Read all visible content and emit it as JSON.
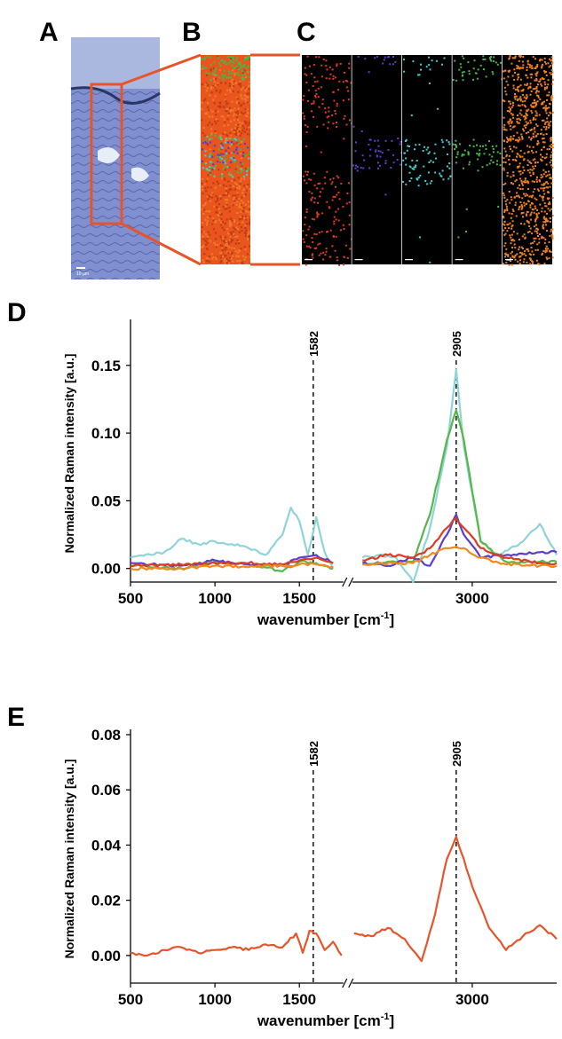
{
  "panels": {
    "A": "A",
    "B": "B",
    "C": "C",
    "D": "D",
    "E": "E"
  },
  "microscope": {
    "scale_bar_label": "10 µm",
    "colors": {
      "tissue_bg": "#7f8fcf",
      "top_region": "#aab8e0",
      "selection_box": "#e8542a",
      "connector": "#e8542a",
      "map_red": "#e03a22",
      "map_purple": "#5a3fcc",
      "map_cyan": "#3ccfcf",
      "map_green": "#44b84a",
      "map_orange": "#f08020"
    }
  },
  "chart_data": [
    {
      "panel": "D",
      "type": "line",
      "xlabel_main": "wavenumber [cm",
      "xlabel_sup": "-1",
      "xlabel_end": "]",
      "ylabel": "Normalized Raman intensity [a.u.]",
      "ylim": [
        -0.01,
        0.18
      ],
      "yticks": [
        "0.00",
        "0.05",
        "0.10",
        "0.15"
      ],
      "ytick_values": [
        0.0,
        0.05,
        0.1,
        0.15
      ],
      "xticks": [
        "500",
        "1000",
        "1500",
        "3000"
      ],
      "xtick_values": [
        500,
        1000,
        1500,
        3000
      ],
      "x_break": true,
      "x_segments": [
        [
          500,
          1750
        ],
        [
          2300,
          3500
        ]
      ],
      "reference_lines": [
        {
          "x": 1582,
          "label": "1582"
        },
        {
          "x": 2905,
          "label": "2905"
        }
      ],
      "series": [
        {
          "color": "#8fd4d8",
          "points": [
            [
              500,
              0.008
            ],
            [
              700,
              0.012
            ],
            [
              800,
              0.022
            ],
            [
              900,
              0.018
            ],
            [
              1000,
              0.02
            ],
            [
              1100,
              0.018
            ],
            [
              1200,
              0.015
            ],
            [
              1300,
              0.01
            ],
            [
              1400,
              0.025
            ],
            [
              1450,
              0.045
            ],
            [
              1500,
              0.035
            ],
            [
              1550,
              0.01
            ],
            [
              1600,
              0.038
            ],
            [
              1650,
              0.012
            ],
            [
              1700,
              0.0
            ],
            [
              2350,
              0.008
            ],
            [
              2450,
              0.01
            ],
            [
              2550,
              0.008
            ],
            [
              2650,
              -0.01
            ],
            [
              2750,
              0.03
            ],
            [
              2850,
              0.09
            ],
            [
              2905,
              0.147
            ],
            [
              2950,
              0.09
            ],
            [
              3050,
              0.02
            ],
            [
              3150,
              0.01
            ],
            [
              3300,
              0.02
            ],
            [
              3400,
              0.033
            ],
            [
              3500,
              0.01
            ]
          ]
        },
        {
          "color": "#55b848",
          "points": [
            [
              500,
              0.002
            ],
            [
              800,
              0.0
            ],
            [
              1000,
              0.005
            ],
            [
              1200,
              0.003
            ],
            [
              1400,
              -0.002
            ],
            [
              1500,
              0.005
            ],
            [
              1600,
              0.004
            ],
            [
              1700,
              0.0
            ],
            [
              2350,
              0.003
            ],
            [
              2500,
              0.005
            ],
            [
              2650,
              0.005
            ],
            [
              2750,
              0.04
            ],
            [
              2850,
              0.095
            ],
            [
              2905,
              0.117
            ],
            [
              2950,
              0.095
            ],
            [
              3050,
              0.02
            ],
            [
              3200,
              0.005
            ],
            [
              3400,
              0.005
            ],
            [
              3500,
              0.005
            ]
          ]
        },
        {
          "color": "#5a3fcc",
          "points": [
            [
              500,
              0.004
            ],
            [
              800,
              0.002
            ],
            [
              1000,
              0.006
            ],
            [
              1200,
              0.003
            ],
            [
              1400,
              0.002
            ],
            [
              1500,
              0.008
            ],
            [
              1600,
              0.01
            ],
            [
              1700,
              0.004
            ],
            [
              2350,
              0.004
            ],
            [
              2500,
              0.002
            ],
            [
              2650,
              0.008
            ],
            [
              2750,
              0.002
            ],
            [
              2850,
              0.025
            ],
            [
              2905,
              0.04
            ],
            [
              2950,
              0.025
            ],
            [
              3050,
              0.008
            ],
            [
              3200,
              0.01
            ],
            [
              3400,
              0.012
            ],
            [
              3500,
              0.012
            ]
          ]
        },
        {
          "color": "#e03a22",
          "points": [
            [
              500,
              0.002
            ],
            [
              800,
              0.003
            ],
            [
              1000,
              0.004
            ],
            [
              1200,
              0.004
            ],
            [
              1400,
              0.003
            ],
            [
              1500,
              0.006
            ],
            [
              1600,
              0.008
            ],
            [
              1700,
              0.004
            ],
            [
              2350,
              0.006
            ],
            [
              2500,
              0.01
            ],
            [
              2650,
              0.008
            ],
            [
              2750,
              0.015
            ],
            [
              2850,
              0.03
            ],
            [
              2905,
              0.037
            ],
            [
              2950,
              0.03
            ],
            [
              3050,
              0.015
            ],
            [
              3200,
              0.008
            ],
            [
              3400,
              0.004
            ],
            [
              3500,
              0.004
            ]
          ]
        },
        {
          "color": "#f08a20",
          "points": [
            [
              500,
              0.0
            ],
            [
              800,
              0.0
            ],
            [
              1000,
              0.002
            ],
            [
              1200,
              0.001
            ],
            [
              1400,
              0.002
            ],
            [
              1500,
              0.003
            ],
            [
              1600,
              0.003
            ],
            [
              1700,
              0.001
            ],
            [
              2350,
              0.003
            ],
            [
              2500,
              0.004
            ],
            [
              2650,
              0.004
            ],
            [
              2750,
              0.01
            ],
            [
              2850,
              0.015
            ],
            [
              2905,
              0.016
            ],
            [
              2950,
              0.015
            ],
            [
              3050,
              0.008
            ],
            [
              3200,
              0.003
            ],
            [
              3400,
              0.002
            ],
            [
              3500,
              0.002
            ]
          ]
        }
      ]
    },
    {
      "panel": "E",
      "type": "line",
      "xlabel_main": "wavenumber [cm",
      "xlabel_sup": "-1",
      "xlabel_end": "]",
      "ylabel": "Normalized Raman intensity [a.u.]",
      "ylim": [
        -0.01,
        0.08
      ],
      "yticks": [
        "0.00",
        "0.02",
        "0.04",
        "0.06",
        "0.08"
      ],
      "ytick_values": [
        0.0,
        0.02,
        0.04,
        0.06,
        0.08
      ],
      "xticks": [
        "500",
        "1000",
        "1500",
        "3000"
      ],
      "xtick_values": [
        500,
        1000,
        1500,
        3000
      ],
      "x_break": true,
      "x_segments": [
        [
          500,
          1750
        ],
        [
          2300,
          3500
        ]
      ],
      "reference_lines": [
        {
          "x": 1582,
          "label": "1582"
        },
        {
          "x": 2905,
          "label": "2905"
        }
      ],
      "series": [
        {
          "color": "#e8542a",
          "points": [
            [
              500,
              0.001
            ],
            [
              600,
              0.0
            ],
            [
              700,
              0.002
            ],
            [
              800,
              0.003
            ],
            [
              900,
              0.001
            ],
            [
              1000,
              0.002
            ],
            [
              1100,
              0.003
            ],
            [
              1200,
              0.002
            ],
            [
              1300,
              0.004
            ],
            [
              1400,
              0.003
            ],
            [
              1480,
              0.008
            ],
            [
              1520,
              0.001
            ],
            [
              1560,
              0.009
            ],
            [
              1600,
              0.008
            ],
            [
              1650,
              0.002
            ],
            [
              1700,
              0.005
            ],
            [
              1750,
              0.0
            ],
            [
              2300,
              0.008
            ],
            [
              2400,
              0.007
            ],
            [
              2500,
              0.01
            ],
            [
              2600,
              0.006
            ],
            [
              2700,
              -0.002
            ],
            [
              2780,
              0.015
            ],
            [
              2850,
              0.035
            ],
            [
              2905,
              0.043
            ],
            [
              2950,
              0.035
            ],
            [
              3000,
              0.025
            ],
            [
              3100,
              0.01
            ],
            [
              3200,
              0.002
            ],
            [
              3300,
              0.007
            ],
            [
              3400,
              0.011
            ],
            [
              3500,
              0.006
            ]
          ]
        }
      ]
    }
  ]
}
